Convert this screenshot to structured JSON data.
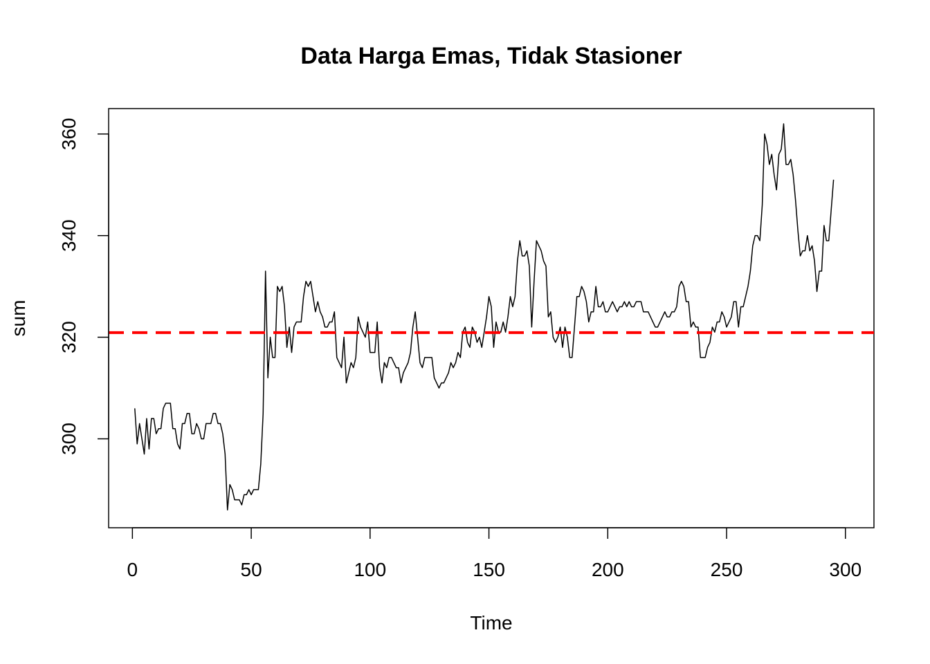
{
  "chart_data": {
    "type": "line",
    "title": "Data Harga Emas, Tidak Stasioner",
    "xlabel": "Time",
    "ylabel": "sum",
    "xlim": [
      -10,
      312
    ],
    "ylim": [
      282.5,
      365
    ],
    "xticks": [
      0,
      50,
      100,
      150,
      200,
      250,
      300
    ],
    "yticks": [
      300,
      320,
      340,
      360
    ],
    "grid": false,
    "legend": "none",
    "series": [
      {
        "color": "#000000",
        "points": [
          [
            1,
            306
          ],
          [
            2,
            299
          ],
          [
            3,
            303
          ],
          [
            4,
            300
          ],
          [
            5,
            297
          ],
          [
            6,
            304
          ],
          [
            7,
            298
          ],
          [
            8,
            304
          ],
          [
            9,
            304
          ],
          [
            10,
            301
          ],
          [
            11,
            302
          ],
          [
            12,
            302
          ],
          [
            13,
            306
          ],
          [
            14,
            307
          ],
          [
            15,
            307
          ],
          [
            16,
            307
          ],
          [
            17,
            302
          ],
          [
            18,
            302
          ],
          [
            19,
            299
          ],
          [
            20,
            298
          ],
          [
            21,
            303
          ],
          [
            22,
            303
          ],
          [
            23,
            305
          ],
          [
            24,
            305
          ],
          [
            25,
            301
          ],
          [
            26,
            301
          ],
          [
            27,
            303
          ],
          [
            28,
            302
          ],
          [
            29,
            300
          ],
          [
            30,
            300
          ],
          [
            31,
            303
          ],
          [
            32,
            303
          ],
          [
            33,
            303
          ],
          [
            34,
            305
          ],
          [
            35,
            305
          ],
          [
            36,
            303
          ],
          [
            37,
            303
          ],
          [
            38,
            301
          ],
          [
            39,
            297
          ],
          [
            40,
            286
          ],
          [
            41,
            291
          ],
          [
            42,
            290
          ],
          [
            43,
            288
          ],
          [
            44,
            288
          ],
          [
            45,
            288
          ],
          [
            46,
            287
          ],
          [
            47,
            289
          ],
          [
            48,
            289
          ],
          [
            49,
            290
          ],
          [
            50,
            289
          ],
          [
            51,
            290
          ],
          [
            52,
            290
          ],
          [
            53,
            290
          ],
          [
            54,
            295
          ],
          [
            55,
            305
          ],
          [
            56,
            333
          ],
          [
            57,
            312
          ],
          [
            58,
            320
          ],
          [
            59,
            316
          ],
          [
            60,
            316
          ],
          [
            61,
            330
          ],
          [
            62,
            329
          ],
          [
            63,
            330
          ],
          [
            64,
            326
          ],
          [
            65,
            318
          ],
          [
            66,
            322
          ],
          [
            67,
            317
          ],
          [
            68,
            322
          ],
          [
            69,
            323
          ],
          [
            70,
            323
          ],
          [
            71,
            323
          ],
          [
            72,
            328
          ],
          [
            73,
            331
          ],
          [
            74,
            330
          ],
          [
            75,
            331
          ],
          [
            76,
            328
          ],
          [
            77,
            325
          ],
          [
            78,
            327
          ],
          [
            79,
            325
          ],
          [
            80,
            324
          ],
          [
            81,
            322
          ],
          [
            82,
            322
          ],
          [
            83,
            323
          ],
          [
            84,
            323
          ],
          [
            85,
            325
          ],
          [
            86,
            316
          ],
          [
            87,
            315
          ],
          [
            88,
            314
          ],
          [
            89,
            320
          ],
          [
            90,
            311
          ],
          [
            91,
            313
          ],
          [
            92,
            315
          ],
          [
            93,
            314
          ],
          [
            94,
            316
          ],
          [
            95,
            324
          ],
          [
            96,
            322
          ],
          [
            97,
            321
          ],
          [
            98,
            320
          ],
          [
            99,
            323
          ],
          [
            100,
            317
          ],
          [
            101,
            317
          ],
          [
            102,
            317
          ],
          [
            103,
            323
          ],
          [
            104,
            314
          ],
          [
            105,
            311
          ],
          [
            106,
            315
          ],
          [
            107,
            314
          ],
          [
            108,
            316
          ],
          [
            109,
            316
          ],
          [
            110,
            315
          ],
          [
            111,
            314
          ],
          [
            112,
            314
          ],
          [
            113,
            311
          ],
          [
            114,
            313
          ],
          [
            115,
            314
          ],
          [
            116,
            315
          ],
          [
            117,
            317
          ],
          [
            118,
            322
          ],
          [
            119,
            325
          ],
          [
            120,
            320
          ],
          [
            121,
            315
          ],
          [
            122,
            314
          ],
          [
            123,
            316
          ],
          [
            124,
            316
          ],
          [
            125,
            316
          ],
          [
            126,
            316
          ],
          [
            127,
            312
          ],
          [
            128,
            311
          ],
          [
            129,
            310
          ],
          [
            130,
            311
          ],
          [
            131,
            311
          ],
          [
            132,
            312
          ],
          [
            133,
            313
          ],
          [
            134,
            315
          ],
          [
            135,
            314
          ],
          [
            136,
            315
          ],
          [
            137,
            317
          ],
          [
            138,
            316
          ],
          [
            139,
            321
          ],
          [
            140,
            322
          ],
          [
            141,
            319
          ],
          [
            142,
            318
          ],
          [
            143,
            322
          ],
          [
            144,
            321
          ],
          [
            145,
            319
          ],
          [
            146,
            320
          ],
          [
            147,
            318
          ],
          [
            148,
            321
          ],
          [
            149,
            324
          ],
          [
            150,
            328
          ],
          [
            151,
            326
          ],
          [
            152,
            318
          ],
          [
            153,
            323
          ],
          [
            154,
            321
          ],
          [
            155,
            321
          ],
          [
            156,
            323
          ],
          [
            157,
            321
          ],
          [
            158,
            324
          ],
          [
            159,
            328
          ],
          [
            160,
            326
          ],
          [
            161,
            328
          ],
          [
            162,
            335
          ],
          [
            163,
            339
          ],
          [
            164,
            336
          ],
          [
            165,
            336
          ],
          [
            166,
            337
          ],
          [
            167,
            334
          ],
          [
            168,
            322
          ],
          [
            169,
            331
          ],
          [
            170,
            339
          ],
          [
            171,
            338
          ],
          [
            172,
            337
          ],
          [
            173,
            335
          ],
          [
            174,
            334
          ],
          [
            175,
            324
          ],
          [
            176,
            325
          ],
          [
            177,
            320
          ],
          [
            178,
            319
          ],
          [
            179,
            320
          ],
          [
            180,
            322
          ],
          [
            181,
            318
          ],
          [
            182,
            322
          ],
          [
            183,
            320
          ],
          [
            184,
            316
          ],
          [
            185,
            316
          ],
          [
            186,
            322
          ],
          [
            187,
            328
          ],
          [
            188,
            328
          ],
          [
            189,
            330
          ],
          [
            190,
            329
          ],
          [
            191,
            327
          ],
          [
            192,
            323
          ],
          [
            193,
            325
          ],
          [
            194,
            325
          ],
          [
            195,
            330
          ],
          [
            196,
            326
          ],
          [
            197,
            326
          ],
          [
            198,
            327
          ],
          [
            199,
            325
          ],
          [
            200,
            325
          ],
          [
            201,
            326
          ],
          [
            202,
            327
          ],
          [
            203,
            326
          ],
          [
            204,
            325
          ],
          [
            205,
            326
          ],
          [
            206,
            326
          ],
          [
            207,
            327
          ],
          [
            208,
            326
          ],
          [
            209,
            327
          ],
          [
            210,
            326
          ],
          [
            211,
            326
          ],
          [
            212,
            327
          ],
          [
            213,
            327
          ],
          [
            214,
            327
          ],
          [
            215,
            325
          ],
          [
            216,
            325
          ],
          [
            217,
            325
          ],
          [
            218,
            324
          ],
          [
            219,
            323
          ],
          [
            220,
            322
          ],
          [
            221,
            322
          ],
          [
            222,
            323
          ],
          [
            223,
            324
          ],
          [
            224,
            325
          ],
          [
            225,
            324
          ],
          [
            226,
            324
          ],
          [
            227,
            325
          ],
          [
            228,
            325
          ],
          [
            229,
            326
          ],
          [
            230,
            330
          ],
          [
            231,
            331
          ],
          [
            232,
            330
          ],
          [
            233,
            327
          ],
          [
            234,
            327
          ],
          [
            235,
            322
          ],
          [
            236,
            323
          ],
          [
            237,
            322
          ],
          [
            238,
            322
          ],
          [
            239,
            316
          ],
          [
            240,
            316
          ],
          [
            241,
            316
          ],
          [
            242,
            318
          ],
          [
            243,
            319
          ],
          [
            244,
            322
          ],
          [
            245,
            321
          ],
          [
            246,
            323
          ],
          [
            247,
            323
          ],
          [
            248,
            325
          ],
          [
            249,
            324
          ],
          [
            250,
            322
          ],
          [
            251,
            323
          ],
          [
            252,
            324
          ],
          [
            253,
            327
          ],
          [
            254,
            327
          ],
          [
            255,
            322
          ],
          [
            256,
            326
          ],
          [
            257,
            326
          ],
          [
            258,
            328
          ],
          [
            259,
            330
          ],
          [
            260,
            333
          ],
          [
            261,
            338
          ],
          [
            262,
            340
          ],
          [
            263,
            340
          ],
          [
            264,
            339
          ],
          [
            265,
            346
          ],
          [
            266,
            360
          ],
          [
            267,
            358
          ],
          [
            268,
            354
          ],
          [
            269,
            356
          ],
          [
            270,
            352
          ],
          [
            271,
            349
          ],
          [
            272,
            356
          ],
          [
            273,
            357
          ],
          [
            274,
            362
          ],
          [
            275,
            354
          ],
          [
            276,
            354
          ],
          [
            277,
            355
          ],
          [
            278,
            352
          ],
          [
            279,
            347
          ],
          [
            280,
            341
          ],
          [
            281,
            336
          ],
          [
            282,
            337
          ],
          [
            283,
            337
          ],
          [
            284,
            340
          ],
          [
            285,
            337
          ],
          [
            286,
            338
          ],
          [
            287,
            335
          ],
          [
            288,
            329
          ],
          [
            289,
            333
          ],
          [
            290,
            333
          ],
          [
            291,
            342
          ],
          [
            292,
            339
          ],
          [
            293,
            339
          ],
          [
            294,
            345
          ],
          [
            295,
            351
          ]
        ]
      }
    ],
    "reference_lines": [
      {
        "orientation": "horizontal",
        "value": 320.9,
        "color": "#ff0000",
        "style": "dashed"
      }
    ]
  }
}
